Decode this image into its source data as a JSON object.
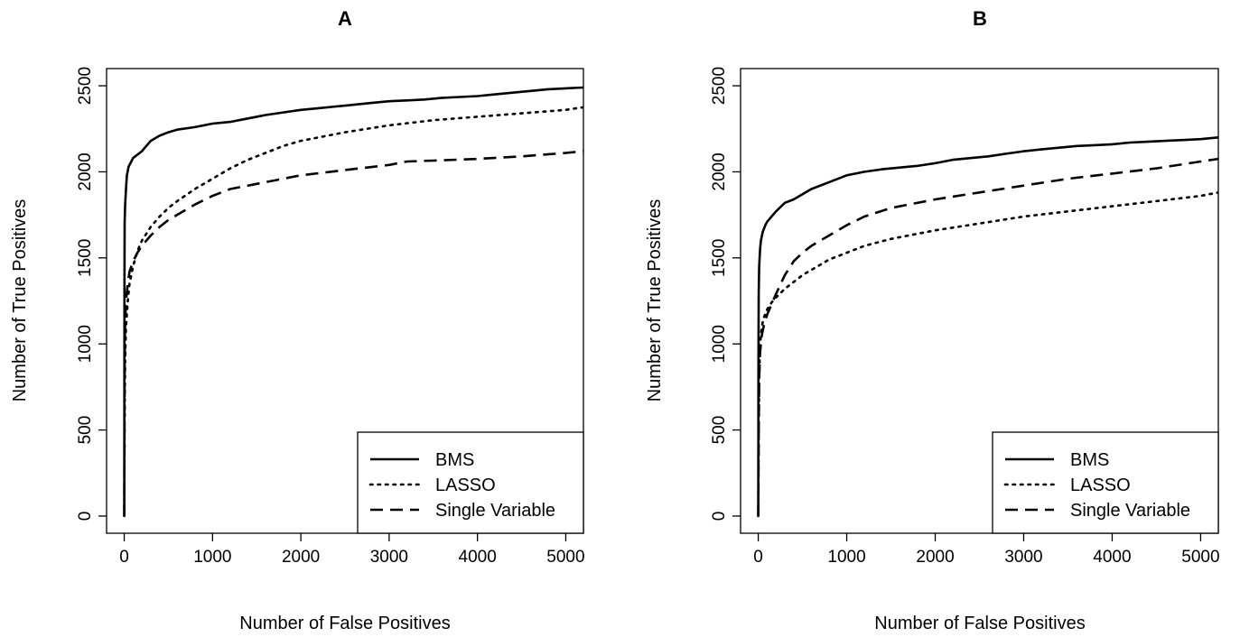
{
  "chart_data": [
    {
      "type": "line",
      "title": "A",
      "xlabel": "Number of False Positives",
      "ylabel": "Number of True Positives",
      "xlim": [
        -200,
        5200
      ],
      "ylim": [
        -100,
        2600
      ],
      "xticks": [
        0,
        1000,
        2000,
        3000,
        4000,
        5000
      ],
      "yticks": [
        0,
        500,
        1000,
        1500,
        2000,
        2500
      ],
      "legend_position": "bottom-right",
      "series": [
        {
          "name": "BMS",
          "style": "solid",
          "x": [
            0,
            2,
            5,
            10,
            20,
            30,
            50,
            80,
            100,
            150,
            200,
            250,
            300,
            400,
            500,
            600,
            800,
            1000,
            1200,
            1400,
            1600,
            1800,
            2000,
            2200,
            2400,
            2600,
            2800,
            3000,
            3200,
            3400,
            3600,
            3800,
            4000,
            4200,
            4400,
            4600,
            4800,
            5000,
            5200
          ],
          "y": [
            0,
            1300,
            1700,
            1800,
            1900,
            1980,
            2030,
            2060,
            2080,
            2100,
            2120,
            2150,
            2180,
            2210,
            2230,
            2245,
            2260,
            2280,
            2290,
            2310,
            2330,
            2345,
            2360,
            2370,
            2380,
            2390,
            2400,
            2410,
            2415,
            2420,
            2430,
            2435,
            2440,
            2450,
            2460,
            2470,
            2480,
            2485,
            2490
          ]
        },
        {
          "name": "LASSO",
          "style": "dotted",
          "x": [
            0,
            5,
            10,
            20,
            40,
            60,
            100,
            150,
            200,
            300,
            400,
            500,
            600,
            800,
            1000,
            1200,
            1400,
            1600,
            1800,
            2000,
            2500,
            3000,
            3500,
            4000,
            4500,
            5000,
            5200
          ],
          "y": [
            0,
            600,
            900,
            1100,
            1250,
            1350,
            1450,
            1540,
            1600,
            1680,
            1740,
            1790,
            1830,
            1900,
            1960,
            2020,
            2070,
            2110,
            2150,
            2180,
            2230,
            2270,
            2300,
            2320,
            2340,
            2360,
            2375
          ]
        },
        {
          "name": "Single Variable",
          "style": "dashed",
          "x": [
            0,
            5,
            10,
            20,
            40,
            60,
            100,
            150,
            200,
            300,
            400,
            500,
            600,
            800,
            1000,
            1200,
            1500,
            1800,
            2000,
            2500,
            3000,
            3200,
            3500,
            4000,
            4500,
            5000,
            5200
          ],
          "y": [
            0,
            800,
            1100,
            1250,
            1350,
            1420,
            1480,
            1530,
            1570,
            1630,
            1680,
            1720,
            1750,
            1810,
            1860,
            1900,
            1930,
            1960,
            1980,
            2010,
            2040,
            2060,
            2065,
            2075,
            2090,
            2110,
            2120
          ]
        }
      ]
    },
    {
      "type": "line",
      "title": "B",
      "xlabel": "Number of False Positives",
      "ylabel": "Number of True Positives",
      "xlim": [
        -200,
        5200
      ],
      "ylim": [
        -100,
        2600
      ],
      "xticks": [
        0,
        1000,
        2000,
        3000,
        4000,
        5000
      ],
      "yticks": [
        0,
        500,
        1000,
        1500,
        2000,
        2500
      ],
      "legend_position": "bottom-right",
      "series": [
        {
          "name": "BMS",
          "style": "solid",
          "x": [
            0,
            2,
            5,
            10,
            20,
            30,
            50,
            80,
            100,
            150,
            200,
            300,
            400,
            500,
            600,
            800,
            1000,
            1200,
            1400,
            1600,
            1800,
            2000,
            2200,
            2400,
            2600,
            2800,
            3000,
            3200,
            3400,
            3600,
            3800,
            4000,
            4200,
            4400,
            4600,
            4800,
            5000,
            5200
          ],
          "y": [
            0,
            900,
            1300,
            1450,
            1550,
            1600,
            1650,
            1690,
            1710,
            1740,
            1770,
            1820,
            1840,
            1870,
            1900,
            1940,
            1980,
            2000,
            2015,
            2025,
            2035,
            2050,
            2070,
            2080,
            2090,
            2105,
            2120,
            2130,
            2140,
            2150,
            2155,
            2160,
            2170,
            2175,
            2180,
            2185,
            2190,
            2200
          ]
        },
        {
          "name": "LASSO",
          "style": "dotted",
          "x": [
            0,
            5,
            10,
            20,
            40,
            60,
            100,
            150,
            200,
            300,
            400,
            500,
            600,
            800,
            1000,
            1200,
            1500,
            2000,
            2500,
            3000,
            3500,
            4000,
            4500,
            5000,
            5200
          ],
          "y": [
            0,
            500,
            800,
            1000,
            1100,
            1150,
            1200,
            1240,
            1270,
            1320,
            1360,
            1400,
            1430,
            1490,
            1530,
            1570,
            1610,
            1660,
            1700,
            1740,
            1770,
            1800,
            1830,
            1860,
            1880
          ]
        },
        {
          "name": "Single Variable",
          "style": "dashed",
          "x": [
            0,
            5,
            10,
            20,
            40,
            60,
            100,
            150,
            200,
            300,
            400,
            500,
            600,
            800,
            1000,
            1200,
            1500,
            2000,
            2500,
            3000,
            3500,
            4000,
            4500,
            5000,
            5200
          ],
          "y": [
            0,
            500,
            800,
            950,
            1050,
            1100,
            1170,
            1230,
            1290,
            1400,
            1480,
            1530,
            1570,
            1630,
            1690,
            1740,
            1790,
            1840,
            1880,
            1920,
            1960,
            1990,
            2020,
            2060,
            2075
          ]
        }
      ]
    }
  ]
}
